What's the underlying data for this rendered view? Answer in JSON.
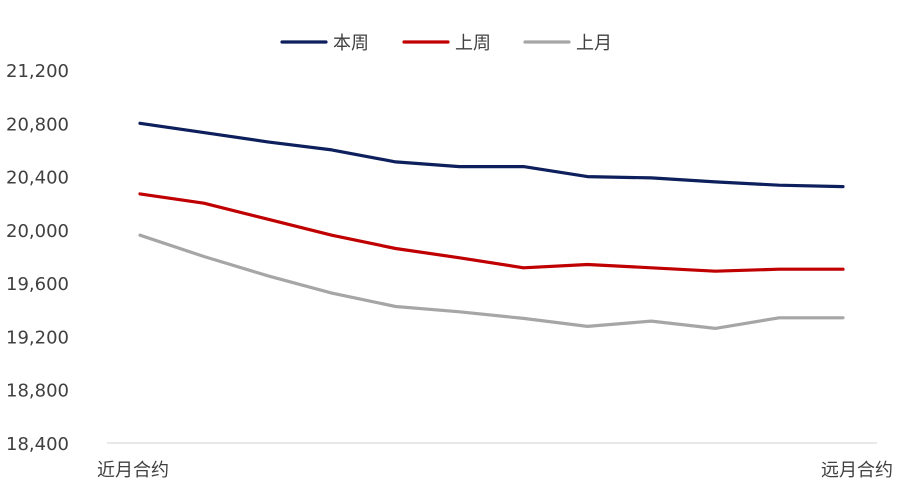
{
  "chart_data": {
    "type": "line",
    "title": "",
    "xlabel": "",
    "ylabel": "",
    "ylim": [
      18400,
      21200
    ],
    "yticks": [
      18400,
      18800,
      19200,
      19600,
      20000,
      20400,
      20800,
      21200
    ],
    "ytick_labels": [
      "18,400",
      "18,800",
      "19,200",
      "19,600",
      "20,000",
      "20,400",
      "20,800",
      "21,200"
    ],
    "x_count": 12,
    "x_labels": [
      "近月合约",
      "",
      "",
      "",
      "",
      "",
      "",
      "",
      "",
      "",
      "",
      "远月合约"
    ],
    "legend_position": "top",
    "grid": false,
    "series": [
      {
        "name": "本周",
        "color": "#0d1f5c",
        "values": [
          20800,
          20730,
          20660,
          20600,
          20510,
          20475,
          20475,
          20400,
          20390,
          20360,
          20335,
          20325
        ]
      },
      {
        "name": "上周",
        "color": "#c00000",
        "values": [
          20270,
          20200,
          20080,
          19960,
          19860,
          19790,
          19715,
          19740,
          19715,
          19690,
          19705,
          19705
        ]
      },
      {
        "name": "上月",
        "color": "#a6a6a6",
        "values": [
          19960,
          19800,
          19655,
          19525,
          19425,
          19385,
          19335,
          19275,
          19315,
          19260,
          19340,
          19340
        ]
      }
    ]
  }
}
